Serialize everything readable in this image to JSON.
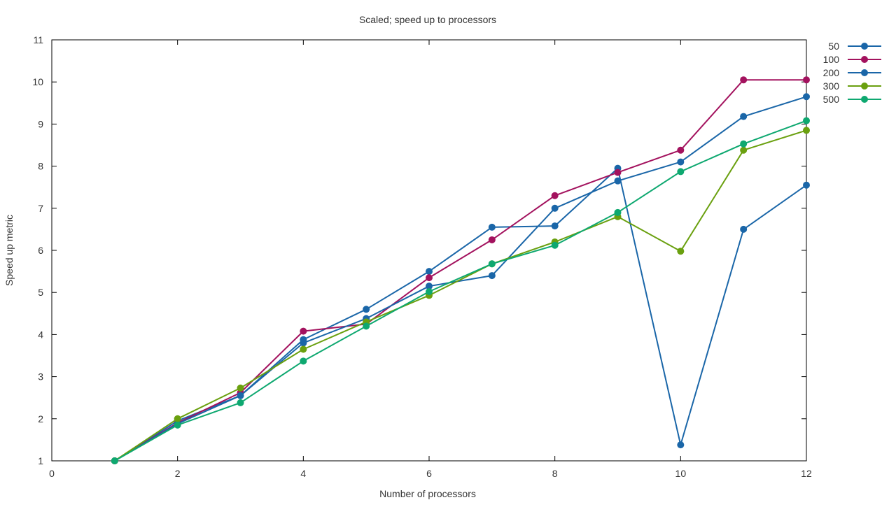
{
  "chart_data": {
    "type": "line",
    "title": "Scaled; speed up to processors",
    "xlabel": "Number of processors",
    "ylabel": "Speed up metric",
    "xlim": [
      0,
      12
    ],
    "ylim": [
      1,
      11
    ],
    "xticks": [
      0,
      2,
      4,
      6,
      8,
      10,
      12
    ],
    "yticks": [
      1,
      2,
      3,
      4,
      5,
      6,
      7,
      8,
      9,
      10,
      11
    ],
    "grid": false,
    "legend_position": "top-right outside",
    "x": [
      1,
      2,
      3,
      4,
      5,
      6,
      7,
      8,
      9,
      10,
      11,
      12
    ],
    "series": [
      {
        "name": "50",
        "color": "#1a66a8",
        "values": [
          1,
          1.95,
          2.55,
          3.88,
          4.6,
          5.5,
          6.55,
          6.58,
          7.95,
          1.38,
          6.5,
          7.55
        ]
      },
      {
        "name": "100",
        "color": "#a3125e",
        "values": [
          1,
          1.9,
          2.62,
          4.08,
          4.25,
          5.35,
          6.25,
          7.3,
          7.85,
          8.38,
          10.05,
          10.05
        ]
      },
      {
        "name": "200",
        "color": "#1a66a8",
        "values": [
          1,
          1.88,
          2.55,
          3.8,
          4.38,
          5.15,
          5.4,
          7.0,
          7.65,
          8.1,
          9.18,
          9.65
        ]
      },
      {
        "name": "300",
        "color": "#6aa00f",
        "values": [
          1,
          2.0,
          2.73,
          3.65,
          4.3,
          4.93,
          5.68,
          6.2,
          6.8,
          5.98,
          8.38,
          8.85
        ]
      },
      {
        "name": "500",
        "color": "#0ea870",
        "values": [
          1,
          1.85,
          2.38,
          3.37,
          4.2,
          5.02,
          5.68,
          6.12,
          6.9,
          7.87,
          8.53,
          9.08
        ]
      }
    ]
  }
}
